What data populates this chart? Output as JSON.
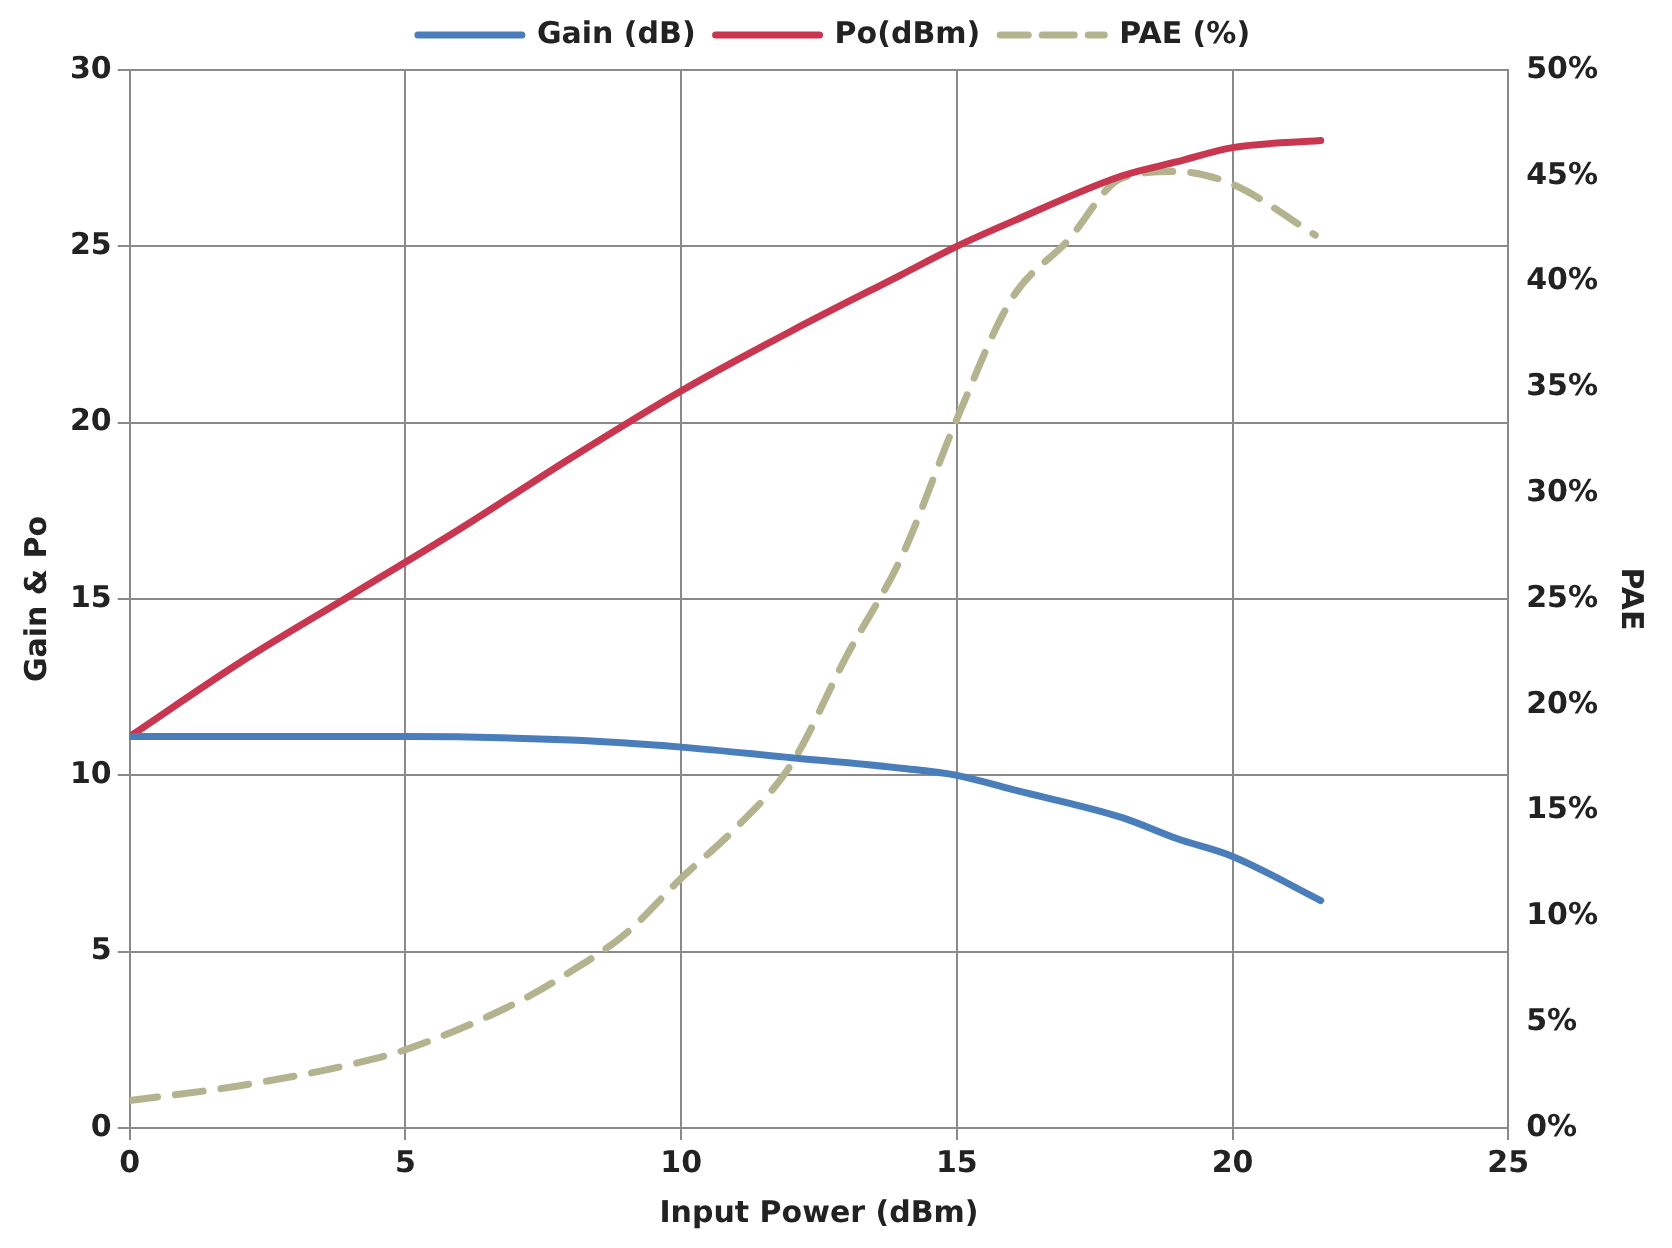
{
  "chart_data": {
    "type": "line",
    "xlabel": "Input Power (dBm)",
    "ylabel": "Gain & Po",
    "y2label": "PAE",
    "xlim": [
      0,
      25
    ],
    "xticks": [
      0,
      5,
      10,
      15,
      20,
      25
    ],
    "ylim": [
      0,
      30
    ],
    "yticks": [
      0,
      5,
      10,
      15,
      20,
      25,
      30
    ],
    "y2lim": [
      0,
      50
    ],
    "y2ticks": [
      {
        "value": 0,
        "label": "0%"
      },
      {
        "value": 5,
        "label": "5%"
      },
      {
        "value": 10,
        "label": "10%"
      },
      {
        "value": 15,
        "label": "15%"
      },
      {
        "value": 20,
        "label": "20%"
      },
      {
        "value": 25,
        "label": "25%"
      },
      {
        "value": 30,
        "label": "30%"
      },
      {
        "value": 35,
        "label": "35%"
      },
      {
        "value": 40,
        "label": "40%"
      },
      {
        "value": 45,
        "label": "45%"
      },
      {
        "value": 50,
        "label": "50%"
      }
    ],
    "grid": true,
    "legend": "top",
    "marker": "none",
    "series": [
      {
        "name": "Gain (dB)",
        "color": "#4a7ebb",
        "line_style": "solid",
        "x": [
          0,
          2,
          5,
          8,
          10,
          12,
          14,
          15,
          16,
          18,
          19,
          20,
          21.6
        ],
        "values": [
          11.1,
          11.1,
          11.1,
          11.0,
          10.8,
          10.5,
          10.2,
          10.0,
          9.6,
          8.8,
          8.2,
          7.7,
          6.45
        ]
      },
      {
        "name": "Po(dBm)",
        "color": "#c8374f",
        "line_style": "solid",
        "x": [
          0,
          2,
          4,
          6,
          8,
          10,
          12,
          14,
          15,
          16,
          18,
          19,
          20,
          21.6
        ],
        "values": [
          11.1,
          13.2,
          15.1,
          17.0,
          19.0,
          20.9,
          22.6,
          24.2,
          25.0,
          25.7,
          27.0,
          27.4,
          27.8,
          28.0
        ]
      },
      {
        "name": "PAE (%)",
        "color": "#b3b38f",
        "line_style": "dashed",
        "axis": "y2",
        "x": [
          0,
          2,
          4,
          5,
          7,
          8,
          9,
          10,
          11,
          12,
          13,
          14,
          15,
          16,
          17,
          18,
          19,
          20,
          21.5
        ],
        "values": [
          1.3,
          2.0,
          3.0,
          3.7,
          5.9,
          7.4,
          9.2,
          11.8,
          14.2,
          17.2,
          22.3,
          27,
          33.5,
          39.2,
          41.9,
          44.9,
          45.2,
          44.6,
          42.2
        ]
      }
    ]
  }
}
